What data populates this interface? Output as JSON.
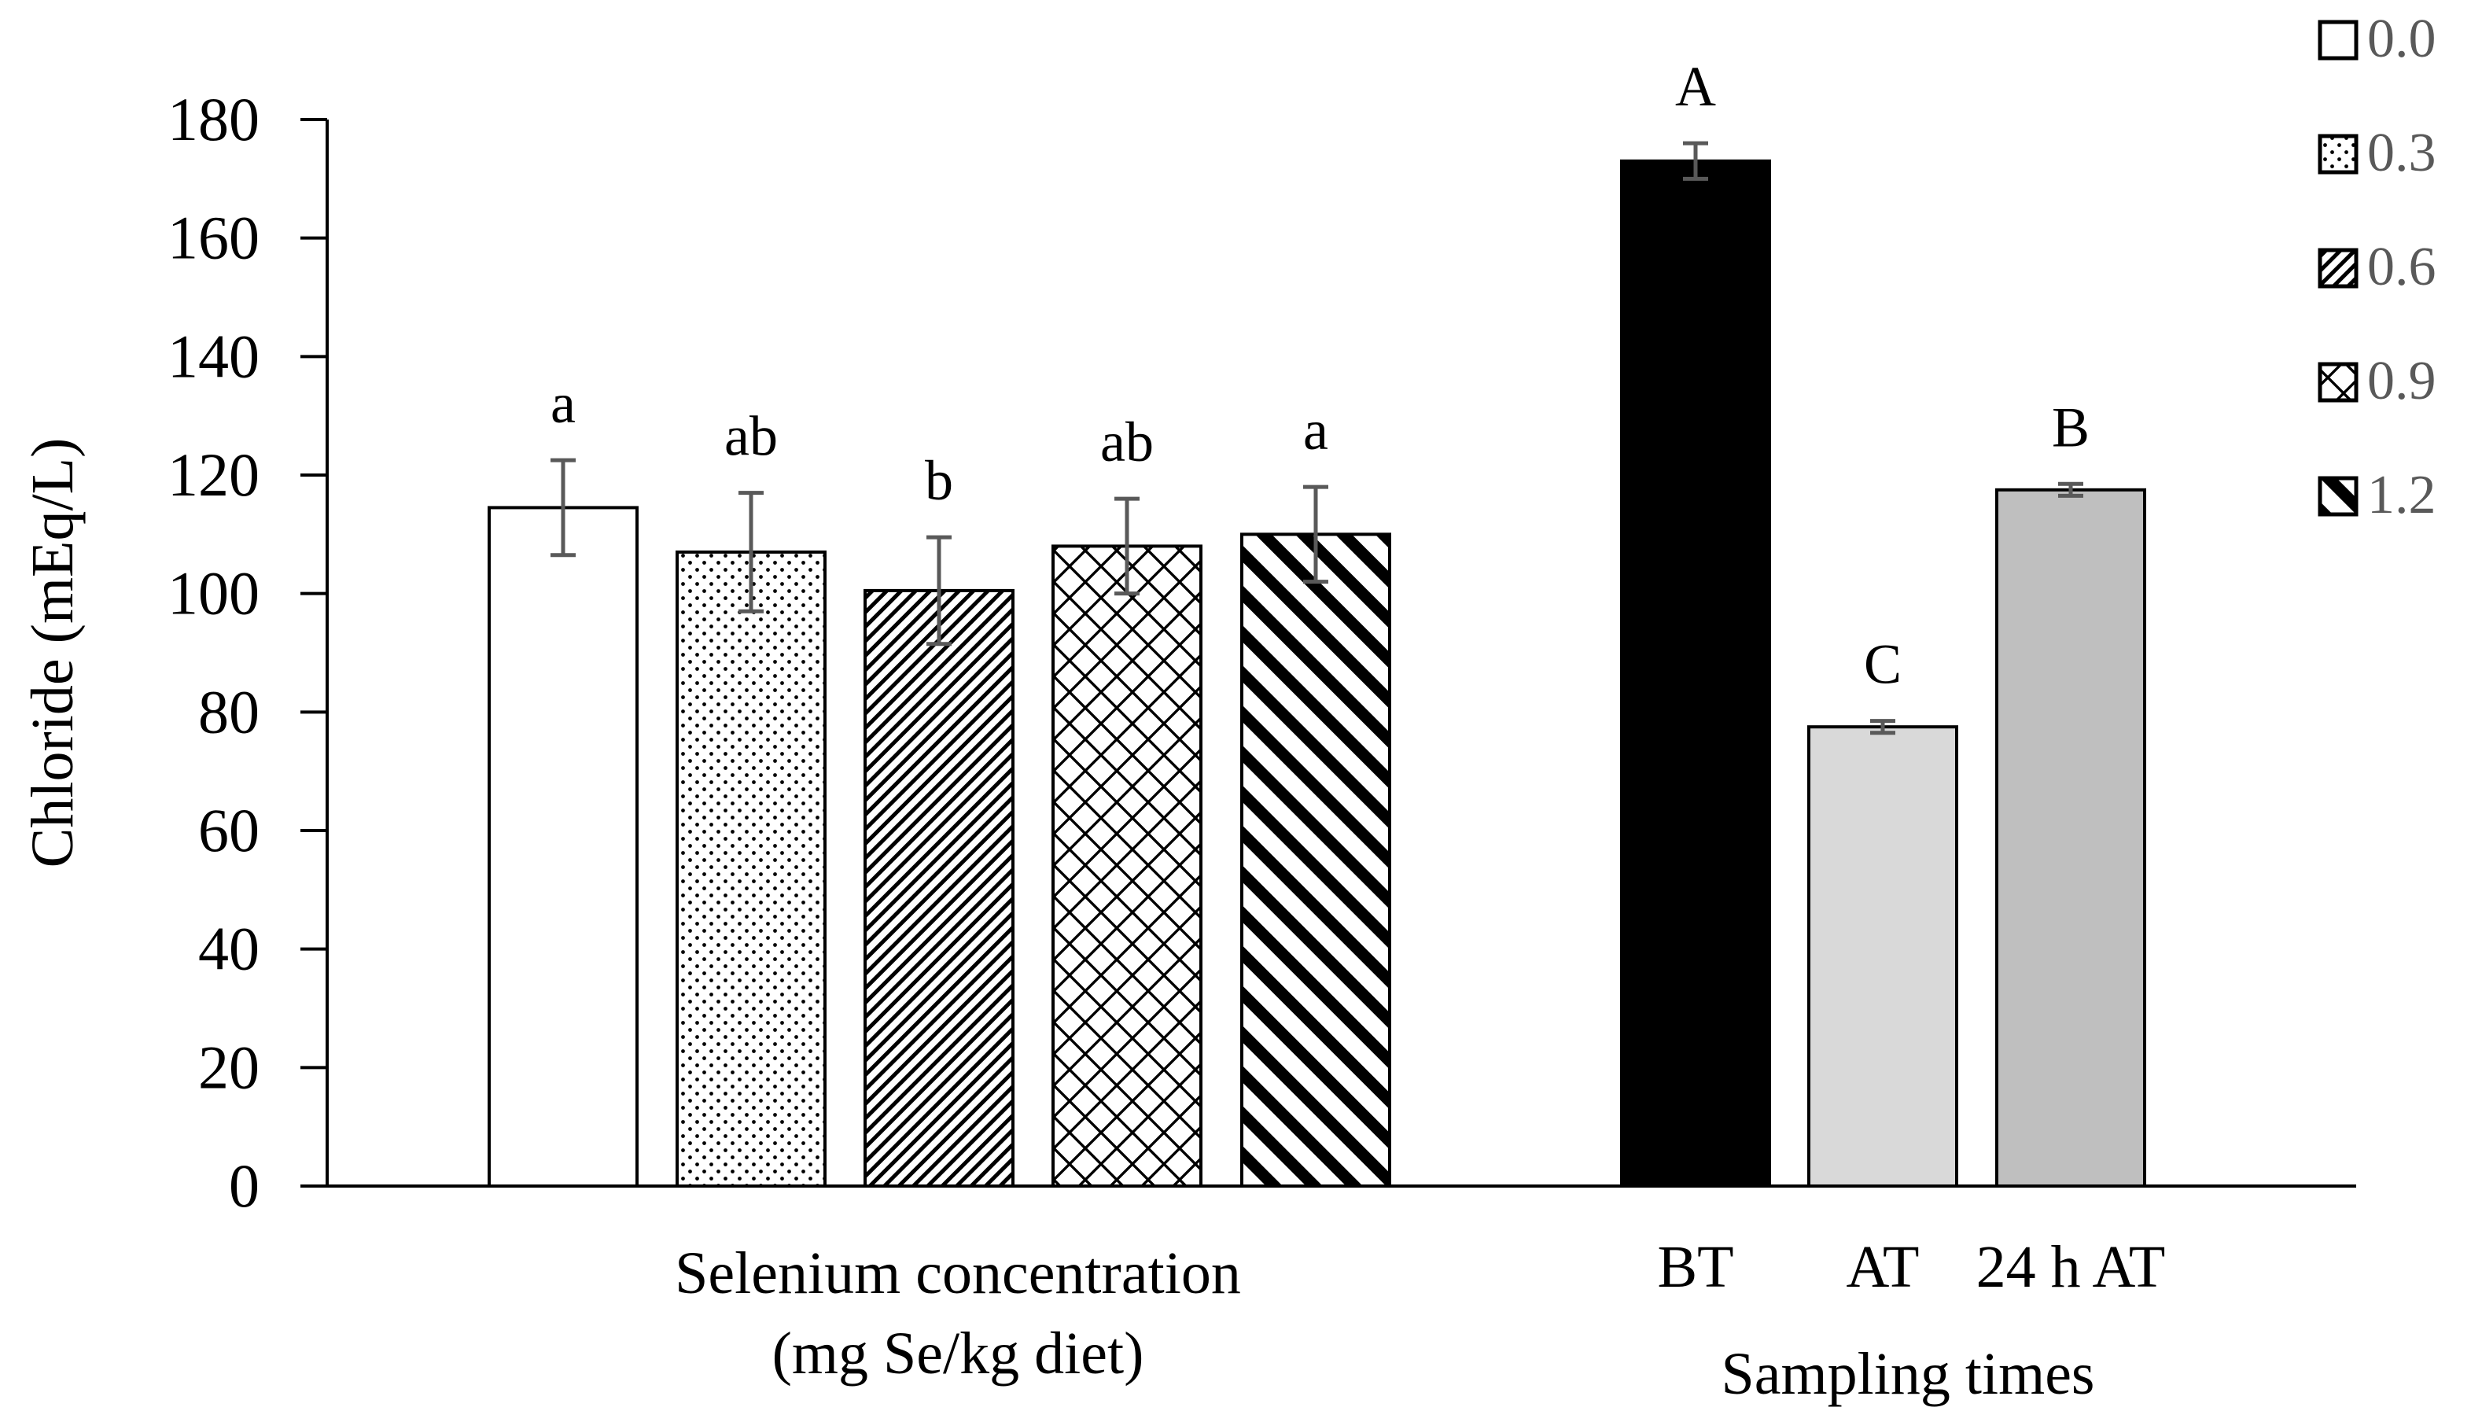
{
  "chart_data": {
    "type": "bar",
    "ylabel": "Chloride (mEq/L)",
    "ylim": [
      0,
      180
    ],
    "yticks": [
      0,
      20,
      40,
      60,
      80,
      100,
      120,
      140,
      160,
      180
    ],
    "groups": [
      {
        "title_lines": [
          "Selenium concentration",
          "(mg Se/kg diet)"
        ],
        "bars": [
          {
            "category": "0.0",
            "value": 114.5,
            "error": 8.0,
            "label": "a",
            "pattern": "white"
          },
          {
            "category": "0.3",
            "value": 107.0,
            "error": 10.0,
            "label": "ab",
            "pattern": "dots"
          },
          {
            "category": "0.6",
            "value": 100.5,
            "error": 9.0,
            "label": "b",
            "pattern": "diag-fine"
          },
          {
            "category": "0.9",
            "value": 108.0,
            "error": 8.0,
            "label": "ab",
            "pattern": "crosshatch"
          },
          {
            "category": "1.2",
            "value": 110.0,
            "error": 8.0,
            "label": "a",
            "pattern": "diag-wide"
          }
        ]
      },
      {
        "title_lines": [
          "Sampling times"
        ],
        "bars": [
          {
            "category": "BT",
            "value": 173.0,
            "error": 3.0,
            "label": "A",
            "color": "#000000"
          },
          {
            "category": "AT",
            "value": 77.5,
            "error": 1.0,
            "label": "C",
            "color": "#d9d9d9"
          },
          {
            "category": "24 h AT",
            "value": 117.5,
            "error": 1.0,
            "label": "B",
            "color": "#bfbfbf"
          }
        ]
      }
    ],
    "legend": {
      "position": "top-right",
      "entries": [
        {
          "label": "0.0",
          "pattern": "white"
        },
        {
          "label": "0.3",
          "pattern": "dots"
        },
        {
          "label": "0.6",
          "pattern": "diag-fine"
        },
        {
          "label": "0.9",
          "pattern": "crosshatch"
        },
        {
          "label": "1.2",
          "pattern": "diag-wide"
        }
      ]
    },
    "colors": {
      "axis": "#000000",
      "error_bar": "#595959",
      "legend_text": "#595959"
    }
  }
}
